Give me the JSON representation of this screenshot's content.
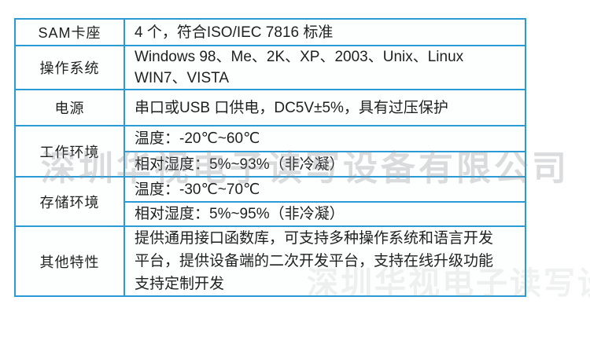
{
  "page": {
    "background": "#ffffff"
  },
  "colors": {
    "table_border": "#2a9ad5",
    "cell_background": "#fdfefe",
    "text": "#1f1f1f",
    "watermark": "#8e9296"
  },
  "watermark": {
    "text": "深圳华视电子读写设备有限公司",
    "text_faint": "深圳华视电子读写设备有限公司"
  },
  "spec_table": {
    "rows": [
      {
        "label": "SAM卡座",
        "value": "4 个，符合ISO/IEC 7816 标准"
      },
      {
        "label": "操作系统",
        "value": "Windows 98、Me、2K、XP、2003、Unix、Linux\nWIN7、VISTA"
      },
      {
        "label": "电源",
        "value": "串口或USB 口供电，DC5V±5%，具有过压保护"
      },
      {
        "label": "工作环境",
        "sub_rows": [
          "温度：-20℃~60℃",
          "相对湿度：5%~93%（非冷凝）"
        ]
      },
      {
        "label": "存储环境",
        "sub_rows": [
          "温度：-30℃~70℃",
          "相对湿度：5%~95%（非冷凝）"
        ]
      },
      {
        "label": "其他特性",
        "value": "提供通用接口函数库，可支持多种操作系统和语言开发\n平台，提供设备端的二次开发平台，支持在线升级功能\n支持定制开发"
      }
    ]
  }
}
